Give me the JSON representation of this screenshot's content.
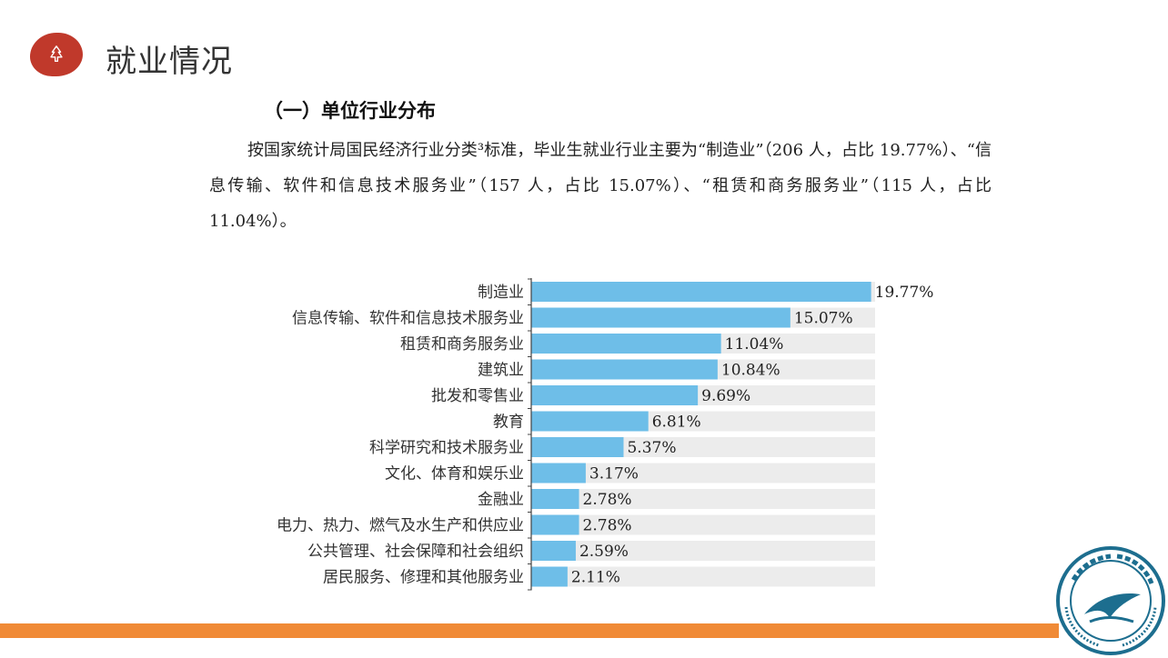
{
  "header": {
    "title": "就业情况"
  },
  "section": {
    "heading": "（一）单位行业分布",
    "paragraph": "按国家统计局国民经济行业分类³标准，毕业生就业行业主要为“制造业”（206 人，占比 19.77%）、“信息传输、软件和信息技术服务业”（157 人，占比 15.07%）、“租赁和商务服务业”（115 人，占比 11.04%）。"
  },
  "colors": {
    "accent": "#c0392b",
    "bar": "#6ebee8",
    "track": "#ececec",
    "bottom_bar": "#f08a36",
    "logo": "#1d6e8f"
  },
  "chart_data": {
    "type": "bar",
    "orientation": "horizontal",
    "categories": [
      "制造业",
      "信息传输、软件和信息技术服务业",
      "租赁和商务服务业",
      "建筑业",
      "批发和零售业",
      "教育",
      "科学研究和技术服务业",
      "文化、体育和娱乐业",
      "金融业",
      "电力、热力、燃气及水生产和供应业",
      "公共管理、社会保障和社会组织",
      "居民服务、修理和其他服务业"
    ],
    "values": [
      19.77,
      15.07,
      11.04,
      10.84,
      9.69,
      6.81,
      5.37,
      3.17,
      2.78,
      2.78,
      2.59,
      2.11
    ],
    "labels": [
      "19.77%",
      "15.07%",
      "11.04%",
      "10.84%",
      "9.69%",
      "6.81%",
      "5.37%",
      "3.17%",
      "2.78%",
      "2.78%",
      "2.59%",
      "2.11%"
    ],
    "xlim": [
      0,
      20
    ],
    "grid": false,
    "legend": "none"
  }
}
